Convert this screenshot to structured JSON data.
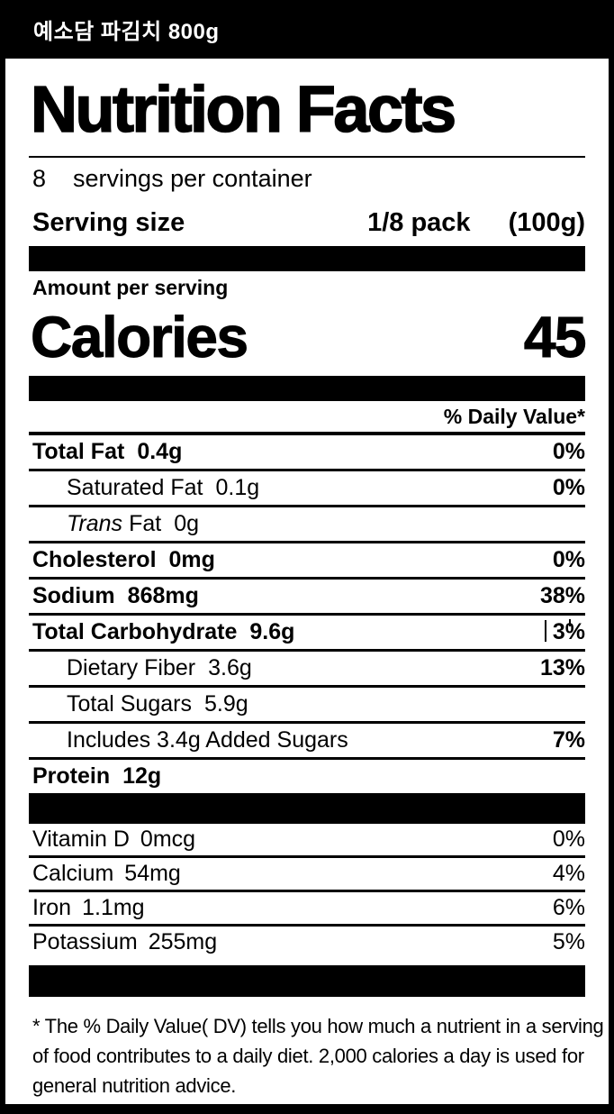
{
  "colors": {
    "ink": "#000000",
    "paper": "#ffffff",
    "header_bg": "#000000",
    "header_text": "#ffffff"
  },
  "header": {
    "product_title": "예소담 파김치 800g"
  },
  "label": {
    "title": "Nutrition Facts",
    "servings": {
      "count": "8",
      "text": "servings per container"
    },
    "serving_size": {
      "label": "Serving size",
      "value": "1/8 pack",
      "weight": "(100g)"
    },
    "amount_per_serving": "Amount per serving",
    "calories": {
      "label": "Calories",
      "value": "45"
    },
    "daily_value_header": "% Daily Value*",
    "nutrients": [
      {
        "name": "Total Fat",
        "amount": "0.4g",
        "dv": "0%"
      },
      {
        "name": "Saturated Fat",
        "amount": "0.1g",
        "dv": "0%"
      },
      {
        "name_italic": "Trans",
        "name": "Fat",
        "amount": "0g",
        "dv": ""
      },
      {
        "name": "Cholesterol",
        "amount": "0mg",
        "dv": "0%"
      },
      {
        "name": "Sodium",
        "amount": "868mg",
        "dv": "38%"
      },
      {
        "name": "Total Carbohydrate",
        "amount": "9.6g",
        "dv": "3%"
      },
      {
        "name": "Dietary Fiber",
        "amount": "3.6g",
        "dv": "13%"
      },
      {
        "name": "Total Sugars",
        "amount": "5.9g",
        "dv": ""
      },
      {
        "name": "Includes 3.4g Added Sugars",
        "amount": "",
        "dv": "7%"
      },
      {
        "name": "Protein",
        "amount": "12g",
        "dv": ""
      }
    ],
    "vitamins": [
      {
        "name": "Vitamin D",
        "amount": "0mcg",
        "dv": "0%"
      },
      {
        "name": "Calcium",
        "amount": "54mg",
        "dv": "4%"
      },
      {
        "name": "Iron",
        "amount": "1.1mg",
        "dv": "6%"
      },
      {
        "name": "Potassium",
        "amount": "255mg",
        "dv": "5%"
      }
    ],
    "footnote_lines": [
      "* The % Daily Value( DV) tells you how much a nutrient in a serving",
      "of food contributes to a daily diet. 2,000 calories a day is used for",
      "general nutrition advice."
    ]
  }
}
